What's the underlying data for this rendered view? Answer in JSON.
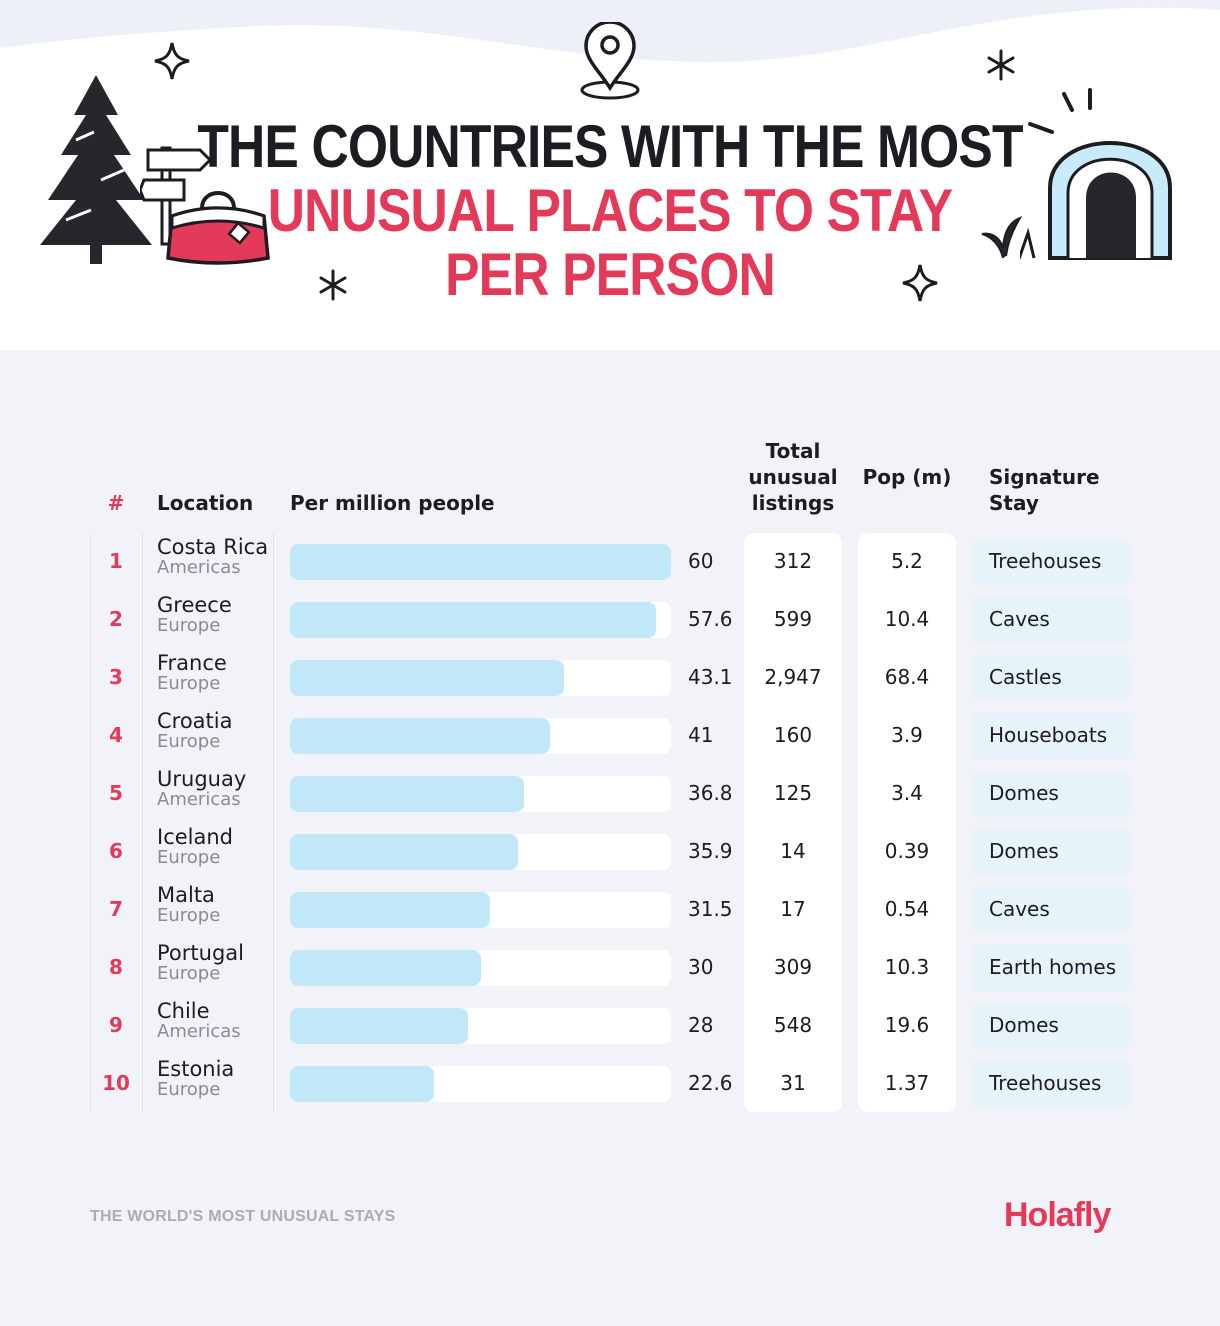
{
  "title": {
    "line1": "THE COUNTRIES WITH THE MOST",
    "line2": "UNUSUAL PLACES TO STAY",
    "line3": "PER PERSON"
  },
  "columns": {
    "rank": "#",
    "location": "Location",
    "per_million": "Per million people",
    "total": "Total unusual listings",
    "pop": "Pop (m)",
    "signature": "Signature Stay"
  },
  "chart_data": {
    "type": "bar",
    "title": "THE COUNTRIES WITH THE MOST UNUSUAL PLACES TO STAY PER PERSON",
    "xlabel": "Per million people",
    "xlim": [
      0,
      60
    ],
    "categories": [
      "Costa Rica",
      "Greece",
      "France",
      "Croatia",
      "Uruguay",
      "Iceland",
      "Malta",
      "Portugal",
      "Chile",
      "Estonia"
    ],
    "values": [
      60,
      57.6,
      43.1,
      41,
      36.8,
      35.9,
      31.5,
      30,
      28,
      22.6
    ],
    "rows": [
      {
        "rank": "1",
        "name": "Costa Rica",
        "region": "Americas",
        "per_million": 60,
        "per_million_label": "60",
        "total": "312",
        "pop": "5.2",
        "stay": "Treehouses"
      },
      {
        "rank": "2",
        "name": "Greece",
        "region": "Europe",
        "per_million": 57.6,
        "per_million_label": "57.6",
        "total": "599",
        "pop": "10.4",
        "stay": "Caves"
      },
      {
        "rank": "3",
        "name": "France",
        "region": "Europe",
        "per_million": 43.1,
        "per_million_label": "43.1",
        "total": "2,947",
        "pop": "68.4",
        "stay": "Castles"
      },
      {
        "rank": "4",
        "name": "Croatia",
        "region": "Europe",
        "per_million": 41,
        "per_million_label": "41",
        "total": "160",
        "pop": "3.9",
        "stay": "Houseboats"
      },
      {
        "rank": "5",
        "name": "Uruguay",
        "region": "Americas",
        "per_million": 36.8,
        "per_million_label": "36.8",
        "total": "125",
        "pop": "3.4",
        "stay": "Domes"
      },
      {
        "rank": "6",
        "name": "Iceland",
        "region": "Europe",
        "per_million": 35.9,
        "per_million_label": "35.9",
        "total": "14",
        "pop": "0.39",
        "stay": "Domes"
      },
      {
        "rank": "7",
        "name": "Malta",
        "region": "Europe",
        "per_million": 31.5,
        "per_million_label": "31.5",
        "total": "17",
        "pop": "0.54",
        "stay": "Caves"
      },
      {
        "rank": "8",
        "name": "Portugal",
        "region": "Europe",
        "per_million": 30,
        "per_million_label": "30",
        "total": "309",
        "pop": "10.3",
        "stay": "Earth homes"
      },
      {
        "rank": "9",
        "name": "Chile",
        "region": "Americas",
        "per_million": 28,
        "per_million_label": "28",
        "total": "548",
        "pop": "19.6",
        "stay": "Domes"
      },
      {
        "rank": "10",
        "name": "Estonia",
        "region": "Europe",
        "per_million": 22.6,
        "per_million_label": "22.6",
        "total": "31",
        "pop": "1.37",
        "stay": "Treehouses"
      }
    ]
  },
  "footer": {
    "caption": "THE WORLD'S MOST UNUSUAL STAYS",
    "logo": "Holafly"
  },
  "colors": {
    "accent": "#e33a5a",
    "bar": "#c1e8f9",
    "stay_bg": "#e6f3fb",
    "background": "#f2f3f9"
  },
  "icons": [
    "location-pin-icon",
    "pine-tree-icon",
    "signpost-icon",
    "travel-bag-icon",
    "igloo-icon",
    "sparkle-icon",
    "asterisk-icon",
    "plant-icon"
  ]
}
